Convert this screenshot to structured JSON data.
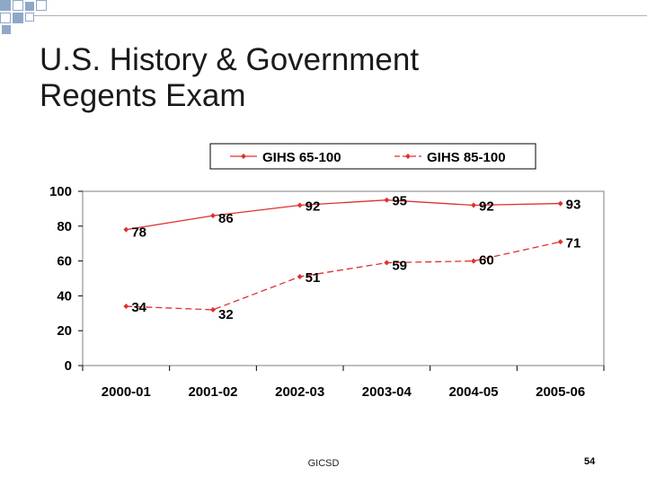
{
  "slide": {
    "title_line1": "U.S. History & Government",
    "title_line2": "Regents Exam",
    "footer": "GICSD",
    "page_number": "54",
    "decor_color": "#8fa8c8"
  },
  "chart_data": {
    "type": "line",
    "categories": [
      "2000-01",
      "2001-02",
      "2002-03",
      "2003-04",
      "2004-05",
      "2005-06"
    ],
    "series": [
      {
        "name": "GIHS 65-100",
        "values": [
          78,
          86,
          92,
          95,
          92,
          93
        ],
        "color": "#e03030",
        "dash": "solid"
      },
      {
        "name": "GIHS 85-100",
        "values": [
          34,
          32,
          51,
          59,
          60,
          71
        ],
        "color": "#e03030",
        "dash": "dashed"
      }
    ],
    "yticks": [
      0,
      20,
      40,
      60,
      80,
      100
    ],
    "ylim": [
      0,
      100
    ],
    "grid": false,
    "legend_position": "top"
  }
}
